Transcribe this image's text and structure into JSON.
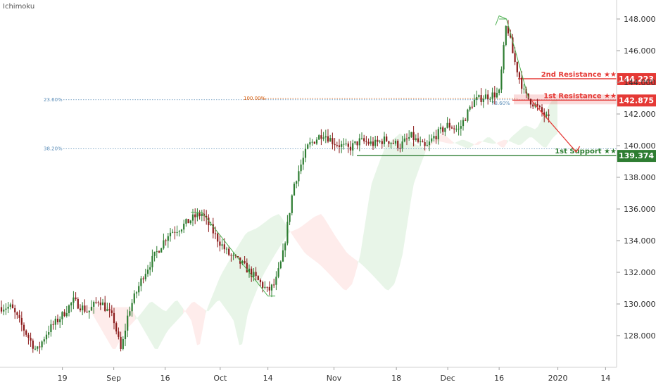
{
  "indicator_label": "Ichimoku",
  "chart_data": {
    "type": "candlestick",
    "indicators": [
      "Ichimoku"
    ],
    "y_axis": {
      "ticks": [
        128,
        130,
        132,
        134,
        136,
        138,
        140,
        142,
        144,
        146,
        148
      ],
      "tick_labels": [
        "128.000",
        "130.000",
        "132.000",
        "134.000",
        "136.000",
        "138.000",
        "140.000",
        "142.000",
        "144.000",
        "146.000",
        "148.000"
      ],
      "range": [
        126,
        149.2
      ]
    },
    "x_axis": {
      "tick_labels": [
        "19",
        "Sep",
        "16",
        "Oct",
        "14",
        "Nov",
        "18",
        "Dec",
        "16",
        "2020",
        "14"
      ]
    },
    "levels": [
      {
        "label": "2nd Resistance ★★",
        "value": 144.223,
        "value_label": "144.223",
        "color": "#e53935"
      },
      {
        "label": "1st Resistance ★★",
        "value": 142.875,
        "value_label": "142.875",
        "color": "#e53935"
      },
      {
        "label": "1st Support ★★",
        "value": 139.374,
        "value_label": "139.374",
        "color": "#2e7d32"
      }
    ],
    "fibonacci": [
      {
        "label": "23.60%",
        "value": 142.9
      },
      {
        "label": "38.20%",
        "value": 139.8
      },
      {
        "label": "100.00%",
        "value": 142.9
      },
      {
        "label": "78.60%",
        "value": 142.8
      }
    ],
    "price_path": [
      {
        "date": "2019-08-05",
        "price": 129.8
      },
      {
        "date": "2019-08-08",
        "price": 128.6
      },
      {
        "date": "2019-08-12",
        "price": 127.0
      },
      {
        "date": "2019-08-15",
        "price": 128.3
      },
      {
        "date": "2019-08-19",
        "price": 129.3
      },
      {
        "date": "2019-08-22",
        "price": 130.2
      },
      {
        "date": "2019-08-26",
        "price": 129.5
      },
      {
        "date": "2019-08-29",
        "price": 130.3
      },
      {
        "date": "2019-09-02",
        "price": 129.0
      },
      {
        "date": "2019-09-04",
        "price": 127.0
      },
      {
        "date": "2019-09-06",
        "price": 129.5
      },
      {
        "date": "2019-09-10",
        "price": 131.8
      },
      {
        "date": "2019-09-13",
        "price": 133.0
      },
      {
        "date": "2019-09-17",
        "price": 134.5
      },
      {
        "date": "2019-09-20",
        "price": 134.8
      },
      {
        "date": "2019-09-24",
        "price": 135.5
      },
      {
        "date": "2019-09-26",
        "price": 135.7
      },
      {
        "date": "2019-09-30",
        "price": 134.2
      },
      {
        "date": "2019-10-03",
        "price": 133.2
      },
      {
        "date": "2019-10-07",
        "price": 132.5
      },
      {
        "date": "2019-10-10",
        "price": 131.8
      },
      {
        "date": "2019-10-14",
        "price": 130.8
      },
      {
        "date": "2019-10-16",
        "price": 131.3
      },
      {
        "date": "2019-10-18",
        "price": 133.0
      },
      {
        "date": "2019-10-21",
        "price": 137.5
      },
      {
        "date": "2019-10-23",
        "price": 138.8
      },
      {
        "date": "2019-10-25",
        "price": 140.0
      },
      {
        "date": "2019-10-29",
        "price": 140.8
      },
      {
        "date": "2019-11-01",
        "price": 140.2
      },
      {
        "date": "2019-11-05",
        "price": 139.8
      },
      {
        "date": "2019-11-08",
        "price": 140.3
      },
      {
        "date": "2019-11-12",
        "price": 140.1
      },
      {
        "date": "2019-11-15",
        "price": 140.4
      },
      {
        "date": "2019-11-19",
        "price": 140.0
      },
      {
        "date": "2019-11-22",
        "price": 140.6
      },
      {
        "date": "2019-11-26",
        "price": 139.8
      },
      {
        "date": "2019-11-28",
        "price": 140.5
      },
      {
        "date": "2019-12-02",
        "price": 141.3
      },
      {
        "date": "2019-12-05",
        "price": 141.0
      },
      {
        "date": "2019-12-09",
        "price": 142.8
      },
      {
        "date": "2019-12-12",
        "price": 143.1
      },
      {
        "date": "2019-12-16",
        "price": 143.3
      },
      {
        "date": "2019-12-18",
        "price": 147.8
      },
      {
        "date": "2019-12-20",
        "price": 145.5
      },
      {
        "date": "2019-12-23",
        "price": 143.2
      },
      {
        "date": "2019-12-26",
        "price": 142.5
      },
      {
        "date": "2019-12-30",
        "price": 141.5
      }
    ],
    "forecast_arrow": {
      "from_date": "2019-12-25",
      "from_price": 142.8,
      "to_date": "2020-01-06",
      "to_price": 139.6
    },
    "grid": false,
    "legend": "none"
  }
}
